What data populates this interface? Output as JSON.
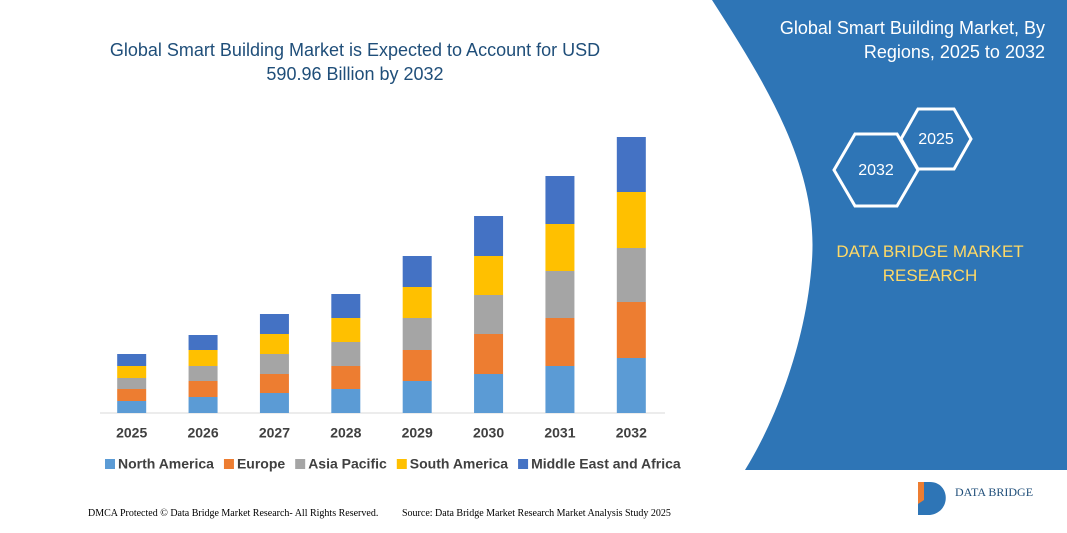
{
  "chart_data": {
    "type": "bar",
    "stacked": true,
    "title": "Global Smart Building Market is Expected to Account for USD 590.96 Billion by 2032",
    "categories": [
      "2025",
      "2026",
      "2027",
      "2028",
      "2029",
      "2030",
      "2031",
      "2032"
    ],
    "series": [
      {
        "name": "North America",
        "color": "#5b9bd5",
        "values": [
          12,
          16,
          20,
          24,
          32,
          39,
          47,
          55
        ]
      },
      {
        "name": "Europe",
        "color": "#ed7d31",
        "values": [
          12,
          16,
          19,
          23,
          31,
          40,
          48,
          56
        ]
      },
      {
        "name": "Asia Pacific",
        "color": "#a5a5a5",
        "values": [
          11,
          15,
          20,
          24,
          32,
          39,
          47,
          54
        ]
      },
      {
        "name": "South America",
        "color": "#ffc000",
        "values": [
          12,
          16,
          20,
          24,
          31,
          39,
          47,
          56
        ]
      },
      {
        "name": "Middle East and Africa",
        "color": "#4472c4",
        "values": [
          12,
          15,
          20,
          24,
          31,
          40,
          48,
          55
        ]
      }
    ],
    "ylim": [
      0,
      280
    ],
    "grid": false
  },
  "panel": {
    "title": "Global Smart Building Market, By Regions, 2025 to 2032",
    "hexagons": [
      "2032",
      "2025"
    ],
    "brand": "DATA BRIDGE MARKET RESEARCH"
  },
  "footer": {
    "left": "DMCA Protected © Data Bridge Market Research- All Rights Reserved.",
    "right": "Source: Data Bridge Market Research Market Analysis Study 2025",
    "logo": "DATA BRIDGE"
  }
}
